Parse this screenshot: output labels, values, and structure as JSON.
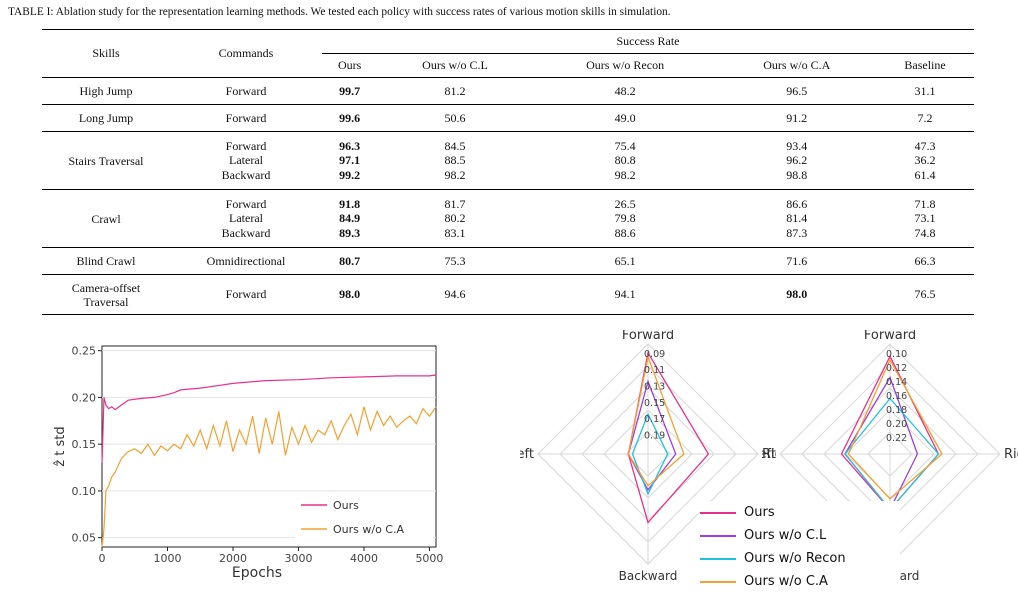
{
  "caption": "TABLE I: Ablation study for the representation learning methods. We tested each policy with success rates of various motion skills in simulation.",
  "table": {
    "header": {
      "skills": "Skills",
      "commands": "Commands",
      "group": "Success Rate"
    },
    "columns": [
      "Ours",
      "Ours w/o C.L",
      "Ours w/o Recon",
      "Ours w/o C.A",
      "Baseline"
    ],
    "groups": [
      {
        "skill": "High Jump",
        "commands": [
          "Forward"
        ],
        "rows": [
          [
            "99.7",
            "81.2",
            "48.2",
            "96.5",
            "31.1"
          ]
        ]
      },
      {
        "skill": "Long Jump",
        "commands": [
          "Forward"
        ],
        "rows": [
          [
            "99.6",
            "50.6",
            "49.0",
            "91.2",
            "7.2"
          ]
        ]
      },
      {
        "skill": "Stairs Traversal",
        "commands": [
          "Forward",
          "Lateral",
          "Backward"
        ],
        "rows": [
          [
            "96.3",
            "84.5",
            "75.4",
            "93.4",
            "47.3"
          ],
          [
            "97.1",
            "88.5",
            "80.8",
            "96.2",
            "36.2"
          ],
          [
            "99.2",
            "98.2",
            "98.2",
            "98.8",
            "61.4"
          ]
        ]
      },
      {
        "skill": "Crawl",
        "commands": [
          "Forward",
          "Lateral",
          "Backward"
        ],
        "rows": [
          [
            "91.8",
            "81.7",
            "26.5",
            "86.6",
            "71.8"
          ],
          [
            "84.9",
            "80.2",
            "79.8",
            "81.4",
            "73.1"
          ],
          [
            "89.3",
            "83.1",
            "88.6",
            "87.3",
            "74.8"
          ]
        ]
      },
      {
        "skill": "Blind Crawl",
        "commands": [
          "Omnidirectional"
        ],
        "rows": [
          [
            "80.7",
            "75.3",
            "65.1",
            "71.6",
            "66.3"
          ]
        ]
      },
      {
        "skill": "Camera-offset\nTraversal",
        "commands": [
          "Forward"
        ],
        "rows": [
          [
            "98.0",
            "94.6",
            "94.1",
            "98.0",
            "76.5"
          ]
        ]
      }
    ]
  },
  "chart_data": [
    {
      "type": "line",
      "xlabel": "Epochs",
      "ylabel": "ẑ t std",
      "xlim": [
        0,
        5100
      ],
      "ylim": [
        0.04,
        0.255
      ],
      "xticks": [
        "0",
        "1000",
        "2000",
        "3000",
        "4000",
        "5000"
      ],
      "yticks": [
        "0.05",
        "0.10",
        "0.15",
        "0.20",
        "0.25"
      ],
      "legend": "lower-right",
      "series": [
        {
          "name": "Ours",
          "color": "#e8308a",
          "x": [
            0,
            30,
            60,
            100,
            150,
            200,
            300,
            400,
            600,
            800,
            1000,
            1100,
            1200,
            1500,
            1800,
            2000,
            2500,
            3000,
            3500,
            4000,
            4500,
            5000,
            5100
          ],
          "y": [
            0.13,
            0.2,
            0.192,
            0.188,
            0.19,
            0.187,
            0.192,
            0.197,
            0.199,
            0.2,
            0.203,
            0.205,
            0.208,
            0.21,
            0.213,
            0.215,
            0.218,
            0.219,
            0.221,
            0.222,
            0.223,
            0.223,
            0.224
          ]
        },
        {
          "name": "Ours w/o C.A",
          "color": "#f5a030",
          "x": [
            0,
            30,
            60,
            100,
            150,
            200,
            300,
            400,
            500,
            600,
            700,
            800,
            900,
            1000,
            1100,
            1200,
            1300,
            1400,
            1500,
            1600,
            1700,
            1800,
            1900,
            2000,
            2100,
            2200,
            2300,
            2400,
            2500,
            2600,
            2700,
            2800,
            2900,
            3000,
            3100,
            3200,
            3300,
            3400,
            3500,
            3600,
            3700,
            3800,
            3900,
            4000,
            4100,
            4200,
            4300,
            4400,
            4500,
            4600,
            4700,
            4800,
            4900,
            5000,
            5100
          ],
          "y": [
            0.04,
            0.06,
            0.1,
            0.105,
            0.115,
            0.12,
            0.135,
            0.142,
            0.145,
            0.14,
            0.15,
            0.138,
            0.148,
            0.143,
            0.15,
            0.145,
            0.16,
            0.148,
            0.165,
            0.145,
            0.17,
            0.148,
            0.175,
            0.142,
            0.165,
            0.15,
            0.18,
            0.14,
            0.178,
            0.15,
            0.185,
            0.138,
            0.168,
            0.15,
            0.17,
            0.152,
            0.165,
            0.16,
            0.175,
            0.155,
            0.17,
            0.182,
            0.16,
            0.19,
            0.165,
            0.185,
            0.17,
            0.18,
            0.168,
            0.175,
            0.18,
            0.172,
            0.188,
            0.18,
            0.19
          ]
        }
      ]
    },
    {
      "type": "radar",
      "axes": [
        "Forward",
        "Right",
        "Backward",
        "Left"
      ],
      "rticks": [
        "0.09",
        "0.11",
        "0.13",
        "0.15",
        "0.17",
        "0.19"
      ],
      "series": [
        {
          "name": "Ours",
          "color": "#e8308a",
          "values": [
            0.09,
            0.14,
            0.13,
            0.19
          ]
        },
        {
          "name": "Ours w/o C.L",
          "color": "#9b40e0",
          "values": [
            0.125,
            0.18,
            0.17,
            0.19
          ]
        },
        {
          "name": "Ours w/o Recon",
          "color": "#20c0e0",
          "values": [
            0.165,
            0.19,
            0.165,
            0.195
          ]
        },
        {
          "name": "Ours w/o C.A",
          "color": "#f5a030",
          "values": [
            0.095,
            0.17,
            0.175,
            0.19
          ]
        }
      ]
    },
    {
      "type": "radar",
      "axes": [
        "Forward",
        "Right",
        "Backward",
        "Left"
      ],
      "rticks": [
        "0.10",
        "0.12",
        "0.14",
        "0.16",
        "0.18",
        "0.20",
        "0.22"
      ],
      "series": [
        {
          "name": "Ours",
          "color": "#e8308a",
          "values": [
            0.105,
            0.175,
            0.165,
            0.175
          ]
        },
        {
          "name": "Ours w/o C.L",
          "color": "#9b40e0",
          "values": [
            0.135,
            0.205,
            0.165,
            0.18
          ]
        },
        {
          "name": "Ours w/o Recon",
          "color": "#20c0e0",
          "values": [
            0.165,
            0.175,
            0.165,
            0.18
          ]
        },
        {
          "name": "Ours w/o C.A",
          "color": "#f5a030",
          "values": [
            0.11,
            0.17,
            0.18,
            0.185
          ]
        }
      ]
    }
  ],
  "radar_legend": [
    "Ours",
    "Ours w/o C.L",
    "Ours w/o Recon",
    "Ours w/o C.A"
  ]
}
